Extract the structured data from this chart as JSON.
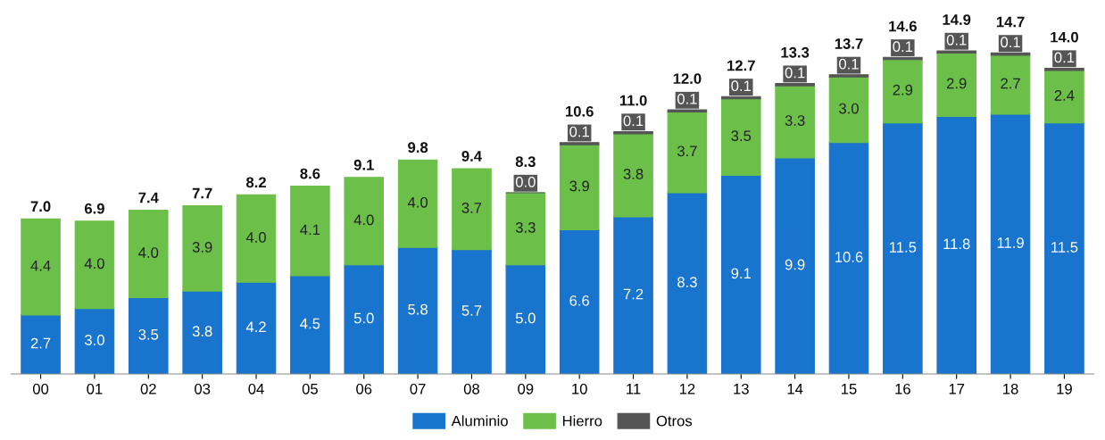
{
  "chart_data": {
    "type": "bar",
    "stacked": true,
    "tick_labels": "x",
    "grid": false,
    "legend": "bottom",
    "categories": [
      "00",
      "01",
      "02",
      "03",
      "04",
      "05",
      "06",
      "07",
      "08",
      "09",
      "10",
      "11",
      "12",
      "13",
      "14",
      "15",
      "16",
      "17",
      "18",
      "19"
    ],
    "series": [
      {
        "name": "Aluminio",
        "color": "#1874cd",
        "values": [
          2.7,
          3.0,
          3.5,
          3.8,
          4.2,
          4.5,
          5.0,
          5.8,
          5.7,
          5.0,
          6.6,
          7.2,
          8.3,
          9.1,
          9.9,
          10.6,
          11.5,
          11.8,
          11.9,
          11.5
        ],
        "value_labels": [
          "2.7",
          "3.0",
          "3.5",
          "3.8",
          "4.2",
          "4.5",
          "5.0",
          "5.8",
          "5.7",
          "5.0",
          "6.6",
          "7.2",
          "8.3",
          "9.1",
          "9.9",
          "10.6",
          "11.5",
          "11.8",
          "11.9",
          "11.5"
        ]
      },
      {
        "name": "Hierro",
        "color": "#6cc04a",
        "values": [
          4.4,
          4.0,
          4.0,
          3.9,
          4.0,
          4.1,
          4.0,
          4.0,
          3.7,
          3.3,
          3.9,
          3.8,
          3.7,
          3.5,
          3.3,
          3.0,
          2.9,
          2.9,
          2.7,
          2.4
        ],
        "value_labels": [
          "4.4",
          "4.0",
          "4.0",
          "3.9",
          "4.0",
          "4.1",
          "4.0",
          "4.0",
          "3.7",
          "3.3",
          "3.9",
          "3.8",
          "3.7",
          "3.5",
          "3.3",
          "3.0",
          "2.9",
          "2.9",
          "2.7",
          "2.4"
        ]
      },
      {
        "name": "Otros",
        "color": "#555555",
        "values": [
          null,
          null,
          null,
          null,
          null,
          null,
          null,
          null,
          null,
          0.0,
          0.1,
          0.1,
          0.1,
          0.1,
          0.1,
          0.1,
          0.1,
          0.1,
          0.1,
          0.1
        ],
        "value_labels": [
          null,
          null,
          null,
          null,
          null,
          null,
          null,
          null,
          null,
          "0.0",
          "0.1",
          "0.1",
          "0.1",
          "0.1",
          "0.1",
          "0.1",
          "0.1",
          "0.1",
          "0.1",
          "0.1"
        ]
      }
    ],
    "totals": [
      "7.0",
      "6.9",
      "7.4",
      "7.7",
      "8.2",
      "8.6",
      "9.1",
      "9.8",
      "9.4",
      "8.3",
      "10.6",
      "11.0",
      "12.0",
      "12.7",
      "13.3",
      "13.7",
      "14.6",
      "14.9",
      "14.7",
      "14.0"
    ]
  }
}
